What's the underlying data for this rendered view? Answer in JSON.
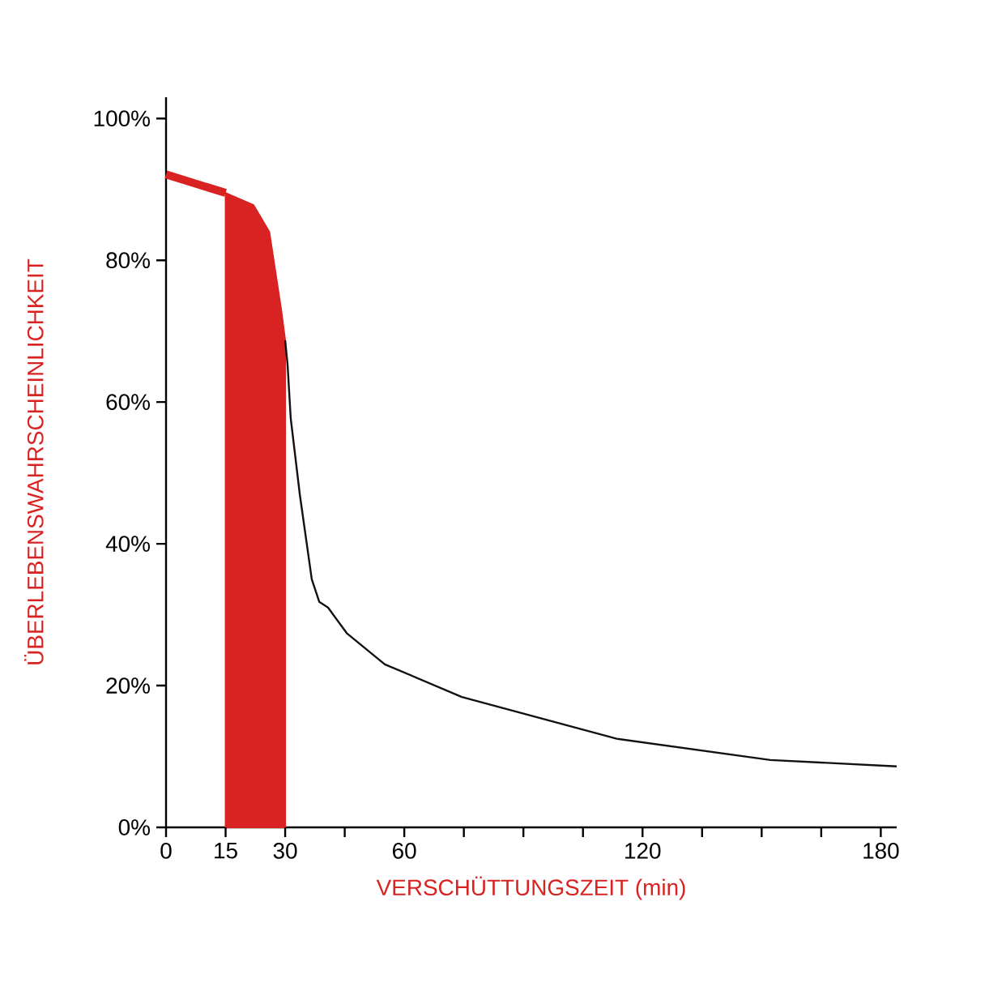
{
  "chart_data": {
    "type": "line",
    "xlabel": "VERSCHÜTTUNGSZEIT (min)",
    "ylabel": "ÜBERLEBENSWAHRSCHEINLICHKEIT",
    "xlim": [
      0,
      184
    ],
    "ylim": [
      0,
      103
    ],
    "xticks": [
      0,
      15,
      30,
      {
        "value": 45,
        "label": null
      },
      60,
      {
        "value": 75,
        "label": null
      },
      {
        "value": 90,
        "label": null
      },
      {
        "value": 105,
        "label": null
      },
      120,
      {
        "value": 135,
        "label": null
      },
      {
        "value": 150,
        "label": null
      },
      {
        "value": 165,
        "label": null
      },
      180
    ],
    "yticks": [
      {
        "value": 0,
        "label": "0%"
      },
      {
        "value": 20,
        "label": "20%"
      },
      {
        "value": 40,
        "label": "40%"
      },
      {
        "value": 60,
        "label": "60%"
      },
      {
        "value": 80,
        "label": "80%"
      },
      {
        "value": 100,
        "label": "100%"
      }
    ],
    "series": [
      {
        "type": "line",
        "color": "#d92222",
        "x": [
          0,
          15
        ],
        "values": [
          92.1,
          89.5
        ]
      },
      {
        "type": "area",
        "color": "#d92222",
        "x": [
          15,
          22,
          26,
          29,
          30
        ],
        "values": [
          89.5,
          87.8,
          84,
          73,
          68.7
        ]
      },
      {
        "type": "line",
        "color": "#111111",
        "x": [
          30,
          30.6,
          31.4,
          33.7,
          36.7,
          38.6,
          40.8,
          45.5,
          55.1,
          74.5,
          113.5,
          152.2,
          184
        ],
        "values": [
          68.7,
          65.3,
          57.7,
          46.9,
          35,
          31.8,
          31,
          27.4,
          23,
          18.4,
          12.5,
          9.5,
          8.6
        ]
      }
    ]
  }
}
